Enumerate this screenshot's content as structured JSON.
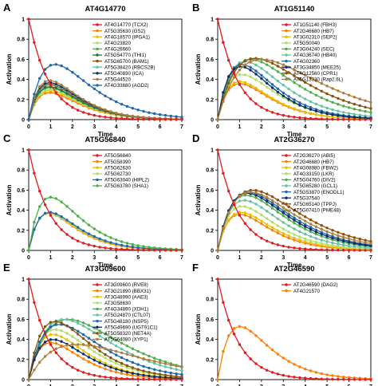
{
  "chart_data": [
    {
      "type": "line",
      "panel": "A",
      "title": "AT4G14770",
      "xlabel": "Time",
      "ylabel": "Activation",
      "xlim": [
        0,
        7
      ],
      "ylim": [
        0,
        1
      ],
      "xticks": [
        0,
        1,
        2,
        3,
        4,
        5,
        6,
        7
      ],
      "yticks": [
        0,
        0.2,
        0.4,
        0.6,
        0.8,
        1
      ],
      "legend": "top-right",
      "x": [
        0,
        0.25,
        0.5,
        0.75,
        1,
        1.25,
        1.5,
        1.75,
        2,
        2.25,
        2.5,
        2.75,
        3,
        3.25,
        3.5,
        3.75,
        4,
        4.25,
        4.5,
        4.75,
        5,
        5.25,
        5.5,
        5.75,
        6,
        6.25,
        6.5,
        6.75,
        7
      ],
      "series": [
        {
          "name": "AT4G14770 (TCX2)",
          "color": "#e41a1c",
          "kind": "decay",
          "peak": 1.0
        },
        {
          "name": "AT5G35630 (GS2)",
          "color": "#ff7f00",
          "kind": "rise",
          "peak": 0.27,
          "tpeak": 0.95
        },
        {
          "name": "AT4G18570 (IPGA1)",
          "color": "#e7c100",
          "kind": "rise",
          "peak": 0.29,
          "tpeak": 0.95
        },
        {
          "name": "AT4G23820",
          "color": "#b3de69",
          "kind": "rise",
          "peak": 0.3,
          "tpeak": 0.95
        },
        {
          "name": "AT4G26660",
          "color": "#4daf4a",
          "kind": "rise",
          "peak": 0.32,
          "tpeak": 0.95
        },
        {
          "name": "AT5G54770 (THI1)",
          "color": "#1b7837",
          "kind": "rise",
          "peak": 0.33,
          "tpeak": 0.95
        },
        {
          "name": "AT5G65700 (BAM1)",
          "color": "#8c510a",
          "kind": "rise",
          "peak": 0.35,
          "tpeak": 0.95
        },
        {
          "name": "AT5G38420 (RBCS2B)",
          "color": "#66c2a5",
          "kind": "rise",
          "peak": 0.36,
          "tpeak": 0.95
        },
        {
          "name": "AT5G40830 (ICA)",
          "color": "#08306b",
          "kind": "rise",
          "peak": 0.37,
          "tpeak": 0.95
        },
        {
          "name": "AT5G44520",
          "color": "#b07d3c",
          "kind": "rise",
          "peak": 0.39,
          "tpeak": 0.95
        },
        {
          "name": "AT4G33680 (AGD2)",
          "color": "#2166ac",
          "kind": "rise",
          "peak": 0.55,
          "tpeak": 1.2
        }
      ]
    },
    {
      "type": "line",
      "panel": "B",
      "title": "AT1G51140",
      "xlabel": "Time",
      "ylabel": "Activation",
      "xlim": [
        0,
        7
      ],
      "ylim": [
        0,
        1
      ],
      "xticks": [
        0,
        1,
        2,
        3,
        4,
        5,
        6,
        7
      ],
      "yticks": [
        0,
        0.2,
        0.4,
        0.6,
        0.8,
        1
      ],
      "legend": "top-right",
      "x": [
        0,
        0.25,
        0.5,
        0.75,
        1,
        1.25,
        1.5,
        1.75,
        2,
        2.25,
        2.5,
        2.75,
        3,
        3.25,
        3.5,
        3.75,
        4,
        4.25,
        4.5,
        4.75,
        5,
        5.25,
        5.5,
        5.75,
        6,
        6.25,
        6.5,
        6.75,
        7
      ],
      "series": [
        {
          "name": "AT1G51140 (FBH3)",
          "color": "#e41a1c",
          "kind": "decay",
          "peak": 1.0
        },
        {
          "name": "AT2G46680 (HB7)",
          "color": "#ff7f00",
          "kind": "rise",
          "peak": 0.36,
          "tpeak": 1.0
        },
        {
          "name": "AT3G02310 (SEP2)",
          "color": "#e7c100",
          "kind": "rise",
          "peak": 0.38,
          "tpeak": 1.0
        },
        {
          "name": "AT5G50040",
          "color": "#b3de69",
          "kind": "rise",
          "peak": 0.45,
          "tpeak": 1.1
        },
        {
          "name": "AT3G04240 (SEC)",
          "color": "#4daf4a",
          "kind": "rise",
          "peak": 0.6,
          "tpeak": 1.5
        },
        {
          "name": "AT4G36740 (HB40)",
          "color": "#66c2a5",
          "kind": "rise",
          "peak": 0.58,
          "tpeak": 1.25
        },
        {
          "name": "AT4G02360",
          "color": "#2166ac",
          "kind": "rise",
          "peak": 0.55,
          "tpeak": 1.1
        },
        {
          "name": "AT3G34850 (MEE25)",
          "color": "#08306b",
          "kind": "rise",
          "peak": 0.53,
          "tpeak": 1.05
        },
        {
          "name": "AT4G12560 (CPR1)",
          "color": "#8c510a",
          "kind": "rise",
          "peak": 0.61,
          "tpeak": 1.7
        },
        {
          "name": "AT5G13330 (Rap2.6L)",
          "color": "#b07d3c",
          "kind": "rise",
          "peak": 0.6,
          "tpeak": 2.0
        }
      ]
    },
    {
      "type": "line",
      "panel": "C",
      "title": "AT5G56840",
      "xlabel": "Time",
      "ylabel": "Activation",
      "xlim": [
        0,
        7
      ],
      "ylim": [
        0,
        1
      ],
      "xticks": [
        0,
        1,
        2,
        3,
        4,
        5,
        6,
        7
      ],
      "yticks": [
        0,
        0.2,
        0.4,
        0.6,
        0.8,
        1
      ],
      "legend": "top-right",
      "x": [
        0,
        0.25,
        0.5,
        0.75,
        1,
        1.25,
        1.5,
        1.75,
        2,
        2.25,
        2.5,
        2.75,
        3,
        3.25,
        3.5,
        3.75,
        4,
        4.25,
        4.5,
        4.75,
        5,
        5.25,
        5.5,
        5.75,
        6,
        6.25,
        6.5,
        6.75,
        7
      ],
      "series": [
        {
          "name": "AT5G56840",
          "color": "#e41a1c",
          "kind": "decay",
          "peak": 1.0
        },
        {
          "name": "AT5G58390",
          "color": "#ff7f00",
          "kind": "rise",
          "peak": 0.37,
          "tpeak": 0.9
        },
        {
          "name": "AT5G62630",
          "color": "#e7c100",
          "kind": "rise",
          "peak": 0.37,
          "tpeak": 0.92
        },
        {
          "name": "AT5G62730",
          "color": "#b3de69",
          "kind": "rise",
          "peak": 0.37,
          "tpeak": 0.94
        },
        {
          "name": "AT5G63040 (HIPL2)",
          "color": "#2166ac",
          "kind": "rise",
          "peak": 0.38,
          "tpeak": 0.95
        },
        {
          "name": "AT5G63780 (SHA1)",
          "color": "#4daf4a",
          "kind": "rise",
          "peak": 0.53,
          "tpeak": 1.0
        }
      ]
    },
    {
      "type": "line",
      "panel": "D",
      "title": "AT2G36270",
      "xlabel": "Time",
      "ylabel": "Activation",
      "xlim": [
        0,
        7
      ],
      "ylim": [
        0,
        1
      ],
      "xticks": [
        0,
        1,
        2,
        3,
        4,
        5,
        6,
        7
      ],
      "yticks": [
        0,
        0.2,
        0.4,
        0.6,
        0.8,
        1
      ],
      "legend": "top-right",
      "x": [
        0,
        0.25,
        0.5,
        0.75,
        1,
        1.25,
        1.5,
        1.75,
        2,
        2.25,
        2.5,
        2.75,
        3,
        3.25,
        3.5,
        3.75,
        4,
        4.25,
        4.5,
        4.75,
        5,
        5.25,
        5.5,
        5.75,
        6,
        6.25,
        6.5,
        6.75,
        7
      ],
      "series": [
        {
          "name": "AT2G36270 (ABI5)",
          "color": "#e41a1c",
          "kind": "decay",
          "peak": 1.0
        },
        {
          "name": "AT2G46680 (HB7)",
          "color": "#ff7f00",
          "kind": "rise",
          "peak": 0.36,
          "tpeak": 1.0
        },
        {
          "name": "AT4G08980 (FBW2)",
          "color": "#e7c100",
          "kind": "rise",
          "peak": 0.38,
          "tpeak": 1.05
        },
        {
          "name": "AT4G33150 (LKR)",
          "color": "#b3de69",
          "kind": "rise",
          "peak": 0.44,
          "tpeak": 1.1
        },
        {
          "name": "AT5G04760 (DIV2)",
          "color": "#4daf4a",
          "kind": "rise",
          "peak": 0.55,
          "tpeak": 1.3
        },
        {
          "name": "AT5G65280 (GCL1)",
          "color": "#66c2a5",
          "kind": "rise",
          "peak": 0.5,
          "tpeak": 1.2
        },
        {
          "name": "AT5G53870 (ENODL1)",
          "color": "#2166ac",
          "kind": "rise",
          "peak": 0.58,
          "tpeak": 1.4
        },
        {
          "name": "AT5G37540",
          "color": "#08306b",
          "kind": "rise",
          "peak": 0.57,
          "tpeak": 1.35
        },
        {
          "name": "AT5G65140 (TPPJ)",
          "color": "#8c510a",
          "kind": "rise",
          "peak": 0.6,
          "tpeak": 1.6
        },
        {
          "name": "AT5G07410 (PME48)",
          "color": "#b07d3c",
          "kind": "rise",
          "peak": 0.58,
          "tpeak": 1.5
        }
      ]
    },
    {
      "type": "line",
      "panel": "E",
      "title": "AT3G09600",
      "xlabel": "Time",
      "ylabel": "Activation",
      "xlim": [
        0,
        7
      ],
      "ylim": [
        0,
        1
      ],
      "xticks": [
        0,
        1,
        2,
        3,
        4,
        5,
        6,
        7
      ],
      "yticks": [
        0,
        0.2,
        0.4,
        0.6,
        0.8,
        1
      ],
      "legend": "top-right",
      "x": [
        0,
        0.25,
        0.5,
        0.75,
        1,
        1.25,
        1.5,
        1.75,
        2,
        2.25,
        2.5,
        2.75,
        3,
        3.25,
        3.5,
        3.75,
        4,
        4.25,
        4.5,
        4.75,
        5,
        5.25,
        5.5,
        5.75,
        6,
        6.25,
        6.5,
        6.75,
        7
      ],
      "series": [
        {
          "name": "AT3G09600 (RVE8)",
          "color": "#e41a1c",
          "kind": "decay",
          "peak": 1.0
        },
        {
          "name": "AT3G21890 (BBX31)",
          "color": "#ff7f00",
          "kind": "rise",
          "peak": 0.37,
          "tpeak": 1.0
        },
        {
          "name": "AT3G48990 (AAE3)",
          "color": "#e7c100",
          "kind": "rise",
          "peak": 0.45,
          "tpeak": 1.1
        },
        {
          "name": "AT3G58630",
          "color": "#b3de69",
          "kind": "rise",
          "peak": 0.5,
          "tpeak": 1.2
        },
        {
          "name": "AT4G34890 (XDH1)",
          "color": "#4daf4a",
          "kind": "rise",
          "peak": 0.6,
          "tpeak": 1.8
        },
        {
          "name": "AT5G24870 (CTL07)",
          "color": "#66c2a5",
          "kind": "rise",
          "peak": 0.6,
          "tpeak": 1.6
        },
        {
          "name": "AT5G48180 (NSP5)",
          "color": "#2166ac",
          "kind": "rise",
          "peak": 0.55,
          "tpeak": 1.4
        },
        {
          "name": "AT5G49690 (UGT91C1)",
          "color": "#08306b",
          "kind": "rise",
          "peak": 0.4,
          "tpeak": 1.1
        },
        {
          "name": "AT5G58320 (NET4A)",
          "color": "#8c510a",
          "kind": "rise",
          "peak": 0.58,
          "tpeak": 1.2
        },
        {
          "name": "AT5G64080 (XYP1)",
          "color": "#b07d3c",
          "kind": "rise",
          "peak": 0.35,
          "tpeak": 2.2
        }
      ]
    },
    {
      "type": "line",
      "panel": "F",
      "title": "AT2G46590",
      "xlabel": "Time",
      "ylabel": "Activation",
      "xlim": [
        0,
        7
      ],
      "ylim": [
        0,
        1
      ],
      "xticks": [
        0,
        1,
        2,
        3,
        4,
        5,
        6,
        7
      ],
      "yticks": [
        0,
        0.2,
        0.4,
        0.6,
        0.8,
        1
      ],
      "legend": "top-right",
      "x": [
        0,
        0.25,
        0.5,
        0.75,
        1,
        1.25,
        1.5,
        1.75,
        2,
        2.25,
        2.5,
        2.75,
        3,
        3.25,
        3.5,
        3.75,
        4,
        4.25,
        4.5,
        4.75,
        5,
        5.25,
        5.5,
        5.75,
        6,
        6.25,
        6.5,
        6.75,
        7
      ],
      "series": [
        {
          "name": "AT2G46590 (DAG2)",
          "color": "#e41a1c",
          "kind": "decay",
          "peak": 1.0
        },
        {
          "name": "AT4G21570",
          "color": "#ff7f00",
          "kind": "rise",
          "peak": 0.53,
          "tpeak": 1.0
        }
      ]
    }
  ]
}
